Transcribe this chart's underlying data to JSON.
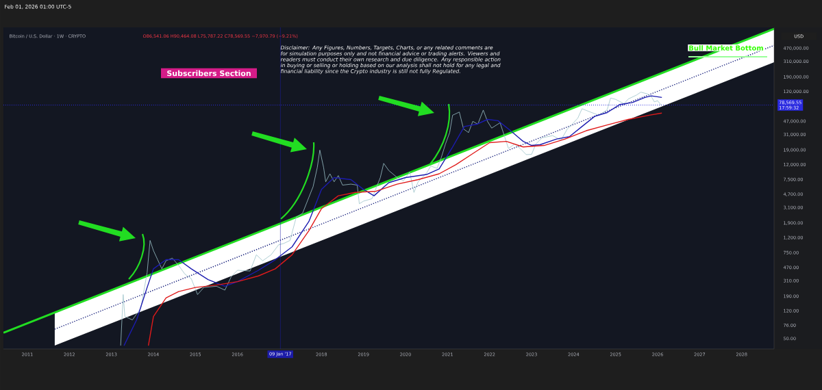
{
  "chart_data": {
    "type": "line",
    "title": "Bitcoin / U.S. Dollar · 1W · CRYPTO",
    "subtitle": "O86,541.06 H90,464.08 L75,787.22 C78,569.55 −7,970.79 (−9.21%)",
    "ylabel": "USD",
    "annotations": [
      "Feb 01, 2026 01:00 UTC-5",
      "Subscribers Section",
      "Disclaimer: Any Figures, Numbers, Targets, Charts, or any related comments are for simulation purposes only and not financial advice or trading alerts. Viewers and readers must conduct their own research and due diligence. Any responsible action in buying or selling or holding based on our analysis shall not hold for any legal and financial liability since the Crypto industry is still not fully Regulated.",
      "Bull Market Bottom",
      "17:59:32"
    ],
    "log": "y",
    "xlim": [
      2010.43,
      2028.77
    ],
    "ylim": [
      36,
      910000
    ],
    "xticks": [
      2011,
      2012,
      2013,
      2014,
      2015,
      2016,
      2018,
      2019,
      2020,
      2021,
      2022,
      2023,
      2024,
      2025,
      2026,
      2027,
      2028
    ],
    "yticks": [
      {
        "value": 50,
        "label": "50.00"
      },
      {
        "value": 76,
        "label": "76.00"
      },
      {
        "value": 120,
        "label": "120.00"
      },
      {
        "value": 190,
        "label": "190.00"
      },
      {
        "value": 310,
        "label": "310.00"
      },
      {
        "value": 470,
        "label": "470.00"
      },
      {
        "value": 750,
        "label": "750.00"
      },
      {
        "value": 1200,
        "label": "1,200.00"
      },
      {
        "value": 1900,
        "label": "1,900.00"
      },
      {
        "value": 3100,
        "label": "3,100.00"
      },
      {
        "value": 4700,
        "label": "4,700.00"
      },
      {
        "value": 7500,
        "label": "7,500.00"
      },
      {
        "value": 12000,
        "label": "12,000.00"
      },
      {
        "value": 19000,
        "label": "19,000.00"
      },
      {
        "value": 31000,
        "label": "31,000.00"
      },
      {
        "value": 47000,
        "label": "47,000.00"
      },
      {
        "value": 120000,
        "label": "120,000.00"
      },
      {
        "value": 190000,
        "label": "190,000.00"
      },
      {
        "value": 310000,
        "label": "310,000.00"
      },
      {
        "value": 470000,
        "label": "470,000.00"
      }
    ],
    "ref_lines": [
      {
        "axis": "x",
        "value": 2017.02,
        "label": "09 Jan '17",
        "color": "#1c1ca8",
        "line_style": "solid"
      },
      {
        "axis": "y",
        "value": 78569.55,
        "label": "78,569.55",
        "color": "#2a2ae0",
        "line_style": "dotted"
      }
    ],
    "series": [
      {
        "color": "#1a237e",
        "line_style": "dotted",
        "x": [
          2011.65,
          2028.77
        ],
        "values": [
          67,
          515000
        ],
        "lower": [
          40,
          303000
        ],
        "upper": [
          115,
          868000
        ]
      },
      {
        "color": "#22dd22",
        "line_style": "solid",
        "x": [
          2010.43,
          2028.77
        ],
        "values": [
          60,
          868000
        ]
      },
      {
        "color": "#9cc3c9",
        "line_style": "solid",
        "x": [
          2013.22,
          2013.28,
          2013.32,
          2013.5,
          2013.7,
          2013.85,
          2013.92,
          2014.0,
          2014.1,
          2014.2,
          2014.3,
          2014.45,
          2014.6,
          2014.75,
          2014.9,
          2015.05,
          2015.2,
          2015.5,
          2015.7,
          2015.85,
          2016.0,
          2016.3,
          2016.45,
          2016.6,
          2016.8,
          2016.98,
          2017.1,
          2017.25,
          2017.4,
          2017.55,
          2017.7,
          2017.8,
          2017.9,
          2017.96,
          2018.05,
          2018.1,
          2018.2,
          2018.3,
          2018.4,
          2018.5,
          2018.7,
          2018.85,
          2018.9,
          2019.0,
          2019.2,
          2019.4,
          2019.48,
          2019.6,
          2019.8,
          2019.95,
          2020.1,
          2020.2,
          2020.3,
          2020.5,
          2020.6,
          2020.75,
          2020.85,
          2020.95,
          2021.05,
          2021.12,
          2021.28,
          2021.38,
          2021.5,
          2021.6,
          2021.72,
          2021.85,
          2021.95,
          2022.05,
          2022.25,
          2022.35,
          2022.45,
          2022.6,
          2022.75,
          2022.87,
          2023.0,
          2023.1,
          2023.25,
          2023.5,
          2023.7,
          2023.85,
          2023.95,
          2024.1,
          2024.2,
          2024.4,
          2024.6,
          2024.8,
          2024.88,
          2025.0,
          2025.2,
          2025.3,
          2025.5,
          2025.6,
          2025.75,
          2025.85,
          2025.92,
          2026.0,
          2026.08
        ],
        "values": [
          40,
          200,
          100,
          90,
          130,
          400,
          1100,
          800,
          600,
          450,
          580,
          630,
          500,
          380,
          330,
          200,
          250,
          260,
          230,
          350,
          430,
          420,
          700,
          580,
          700,
          960,
          1000,
          1100,
          2300,
          2600,
          4300,
          6000,
          11000,
          19000,
          11000,
          7000,
          9000,
          7000,
          8500,
          6300,
          6500,
          6300,
          3500,
          3800,
          4100,
          8000,
          12500,
          10000,
          8000,
          7200,
          9500,
          5000,
          7000,
          9200,
          11500,
          10700,
          15000,
          23000,
          33000,
          57000,
          63000,
          37000,
          33000,
          47000,
          43000,
          67000,
          47000,
          38000,
          45000,
          30000,
          20000,
          23000,
          19500,
          16500,
          16600,
          23000,
          28000,
          30000,
          26000,
          37000,
          42000,
          52000,
          70000,
          63000,
          57000,
          68000,
          98000,
          94000,
          82000,
          95000,
          108000,
          118000,
          112000,
          103000,
          87000,
          90000,
          78570
        ]
      },
      {
        "color": "#1c1cb0",
        "line_style": "solid",
        "x": [
          2013.3,
          2013.6,
          2013.85,
          2014.0,
          2014.3,
          2014.6,
          2014.9,
          2015.3,
          2015.7,
          2016.0,
          2016.5,
          2016.9,
          2017.3,
          2017.7,
          2018.0,
          2018.3,
          2018.7,
          2019.0,
          2019.25,
          2019.6,
          2020.0,
          2020.5,
          2020.8,
          2021.1,
          2021.4,
          2021.7,
          2021.95,
          2022.2,
          2022.5,
          2022.8,
          2023.0,
          2023.2,
          2023.6,
          2023.9,
          2024.2,
          2024.5,
          2024.8,
          2025.1,
          2025.4,
          2025.7,
          2025.85,
          2026.1
        ],
        "values": [
          40,
          90,
          250,
          450,
          600,
          600,
          450,
          320,
          260,
          300,
          430,
          600,
          900,
          2000,
          5500,
          8000,
          7500,
          5500,
          4500,
          6800,
          8000,
          8800,
          10500,
          20000,
          40000,
          43000,
          50000,
          48000,
          35000,
          25000,
          22000,
          22500,
          27000,
          29000,
          40000,
          55000,
          62000,
          80000,
          85000,
          100000,
          105000,
          100000
        ]
      },
      {
        "color": "#e01b1b",
        "line_style": "solid",
        "x": [
          2013.88,
          2014.0,
          2014.3,
          2014.6,
          2015.0,
          2015.5,
          2016.0,
          2016.5,
          2016.9,
          2017.3,
          2017.7,
          2018.0,
          2018.4,
          2018.8,
          2019.3,
          2019.8,
          2020.3,
          2020.8,
          2021.2,
          2021.6,
          2022.0,
          2022.4,
          2022.8,
          2023.3,
          2023.8,
          2024.3,
          2024.8,
          2025.3,
          2025.8,
          2026.1
        ],
        "values": [
          40,
          100,
          180,
          220,
          250,
          270,
          300,
          360,
          450,
          700,
          1500,
          3000,
          4500,
          5000,
          5200,
          6500,
          7500,
          9000,
          12000,
          17000,
          24000,
          25000,
          21000,
          22000,
          27000,
          35000,
          42000,
          50000,
          57000,
          61000
        ]
      }
    ]
  }
}
